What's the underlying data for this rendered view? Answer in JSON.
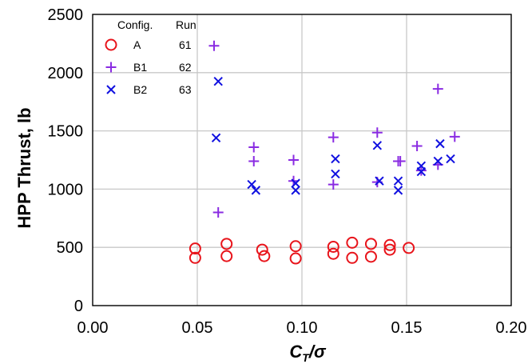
{
  "chart_data": {
    "type": "scatter",
    "xlabel": {
      "main": "C",
      "sub": "T",
      "rest": "/σ"
    },
    "ylabel": "HPP Thrust, lb",
    "xlim": [
      0,
      0.2
    ],
    "ylim": [
      0,
      2500
    ],
    "x_ticks": [
      "0.00",
      "0.05",
      "0.10",
      "0.15",
      "0.20"
    ],
    "y_ticks": [
      "0",
      "500",
      "1000",
      "1500",
      "2000",
      "2500"
    ],
    "grid": true,
    "legend": {
      "placement": "top-left",
      "header_config": "Config.",
      "header_run": "Run"
    },
    "series": [
      {
        "name": "A",
        "run": "61",
        "marker": "circle",
        "color": "#e8141b",
        "points": [
          [
            0.049,
            490
          ],
          [
            0.049,
            410
          ],
          [
            0.064,
            530
          ],
          [
            0.064,
            425
          ],
          [
            0.081,
            480
          ],
          [
            0.082,
            425
          ],
          [
            0.097,
            510
          ],
          [
            0.097,
            405
          ],
          [
            0.115,
            505
          ],
          [
            0.115,
            445
          ],
          [
            0.124,
            540
          ],
          [
            0.124,
            410
          ],
          [
            0.133,
            530
          ],
          [
            0.133,
            420
          ],
          [
            0.142,
            520
          ],
          [
            0.142,
            480
          ],
          [
            0.151,
            495
          ]
        ]
      },
      {
        "name": "B1",
        "run": "62",
        "marker": "plus",
        "color": "#8a2be2",
        "points": [
          [
            0.058,
            2230
          ],
          [
            0.06,
            800
          ],
          [
            0.077,
            1360
          ],
          [
            0.077,
            1240
          ],
          [
            0.096,
            1250
          ],
          [
            0.096,
            1070
          ],
          [
            0.115,
            1445
          ],
          [
            0.115,
            1040
          ],
          [
            0.136,
            1485
          ],
          [
            0.136,
            1060
          ],
          [
            0.146,
            1240
          ],
          [
            0.147,
            1240
          ],
          [
            0.155,
            1370
          ],
          [
            0.157,
            1160
          ],
          [
            0.165,
            1860
          ],
          [
            0.165,
            1210
          ],
          [
            0.173,
            1450
          ]
        ]
      },
      {
        "name": "B2",
        "run": "63",
        "marker": "x",
        "color": "#1010e0",
        "points": [
          [
            0.06,
            1925
          ],
          [
            0.059,
            1440
          ],
          [
            0.076,
            1040
          ],
          [
            0.078,
            990
          ],
          [
            0.097,
            1050
          ],
          [
            0.097,
            990
          ],
          [
            0.116,
            1260
          ],
          [
            0.116,
            1130
          ],
          [
            0.136,
            1375
          ],
          [
            0.137,
            1070
          ],
          [
            0.146,
            1070
          ],
          [
            0.146,
            990
          ],
          [
            0.157,
            1200
          ],
          [
            0.157,
            1150
          ],
          [
            0.165,
            1240
          ],
          [
            0.166,
            1390
          ],
          [
            0.171,
            1260
          ]
        ]
      }
    ]
  }
}
